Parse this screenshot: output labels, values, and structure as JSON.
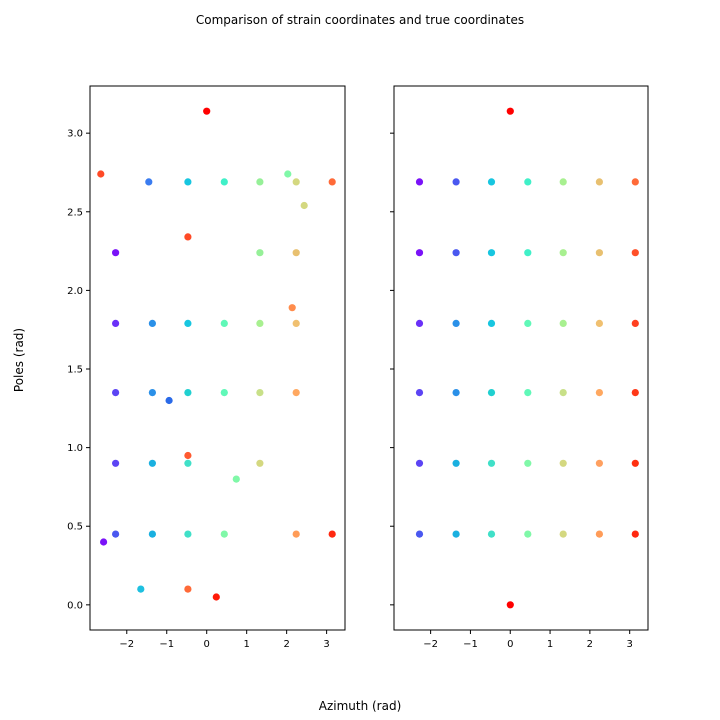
{
  "figure": {
    "title": "Comparison of strain coordinates and true coordinates",
    "xlabel": "Azimuth (rad)",
    "ylabel": "Poles (rad)"
  },
  "chart_data": [
    {
      "type": "scatter",
      "title": "",
      "xlabel": "",
      "ylabel": "",
      "xlim": [
        -2.92,
        3.46
      ],
      "ylim": [
        -0.16,
        3.3
      ],
      "xticks": [
        -2,
        -1,
        0,
        1,
        2,
        3
      ],
      "xtick_labels": [
        "−2",
        "−1",
        "0",
        "1",
        "2",
        "3"
      ],
      "yticks": [
        0.0,
        0.5,
        1.0,
        1.5,
        2.0,
        2.5,
        3.0
      ],
      "ytick_labels": [
        "0.0",
        "0.5",
        "1.0",
        "1.5",
        "2.0",
        "2.5",
        "3.0"
      ],
      "grid": false,
      "colormap": "rainbow",
      "points": [
        {
          "x": 0.0,
          "y": 3.14,
          "color": "#ff0000"
        },
        {
          "x": -2.65,
          "y": 2.74,
          "color": "#ff4a26"
        },
        {
          "x": -1.45,
          "y": 2.69,
          "color": "#3a7cf0"
        },
        {
          "x": -0.47,
          "y": 2.69,
          "color": "#17c6e0"
        },
        {
          "x": 0.44,
          "y": 2.69,
          "color": "#40f0c8"
        },
        {
          "x": 1.33,
          "y": 2.69,
          "color": "#96f098"
        },
        {
          "x": 2.03,
          "y": 2.74,
          "color": "#80f8a8"
        },
        {
          "x": 2.24,
          "y": 2.69,
          "color": "#d4d880"
        },
        {
          "x": 3.14,
          "y": 2.69,
          "color": "#ff6a38"
        },
        {
          "x": 2.44,
          "y": 2.54,
          "color": "#d4d880"
        },
        {
          "x": -2.28,
          "y": 2.24,
          "color": "#7a12f8"
        },
        {
          "x": -0.47,
          "y": 2.34,
          "color": "#ff4a26"
        },
        {
          "x": 1.33,
          "y": 2.24,
          "color": "#96f098"
        },
        {
          "x": 2.24,
          "y": 2.24,
          "color": "#e8c070"
        },
        {
          "x": 2.14,
          "y": 1.89,
          "color": "#ff8c4c"
        },
        {
          "x": -2.28,
          "y": 1.79,
          "color": "#6a30f8"
        },
        {
          "x": -1.36,
          "y": 1.79,
          "color": "#2a90e8"
        },
        {
          "x": -0.47,
          "y": 1.79,
          "color": "#17c6e0"
        },
        {
          "x": 0.44,
          "y": 1.79,
          "color": "#60f8b8"
        },
        {
          "x": 1.33,
          "y": 1.79,
          "color": "#a8f090"
        },
        {
          "x": 2.24,
          "y": 1.79,
          "color": "#f0c070"
        },
        {
          "x": -2.28,
          "y": 1.35,
          "color": "#5c44f4"
        },
        {
          "x": -1.36,
          "y": 1.35,
          "color": "#2a90e8"
        },
        {
          "x": -0.94,
          "y": 1.3,
          "color": "#2a6ae8"
        },
        {
          "x": -0.47,
          "y": 1.35,
          "color": "#20d0d0"
        },
        {
          "x": 0.44,
          "y": 1.35,
          "color": "#60f8b8"
        },
        {
          "x": 1.33,
          "y": 1.35,
          "color": "#c8e088"
        },
        {
          "x": 2.24,
          "y": 1.35,
          "color": "#ffa860"
        },
        {
          "x": -2.28,
          "y": 0.9,
          "color": "#5c44f4"
        },
        {
          "x": -1.36,
          "y": 0.9,
          "color": "#1ab0e0"
        },
        {
          "x": -0.47,
          "y": 0.95,
          "color": "#ff5a30"
        },
        {
          "x": -0.47,
          "y": 0.9,
          "color": "#40e0c8"
        },
        {
          "x": 0.74,
          "y": 0.8,
          "color": "#80f8a8"
        },
        {
          "x": 1.33,
          "y": 0.9,
          "color": "#d4d880"
        },
        {
          "x": -2.28,
          "y": 0.45,
          "color": "#4a58f0"
        },
        {
          "x": -1.36,
          "y": 0.45,
          "color": "#1ab0e0"
        },
        {
          "x": -0.47,
          "y": 0.45,
          "color": "#40e0c8"
        },
        {
          "x": 0.44,
          "y": 0.45,
          "color": "#80f8a8"
        },
        {
          "x": 2.24,
          "y": 0.45,
          "color": "#ff9c58"
        },
        {
          "x": 3.14,
          "y": 0.45,
          "color": "#ff2810"
        },
        {
          "x": -2.58,
          "y": 0.4,
          "color": "#7a12f8"
        },
        {
          "x": -1.65,
          "y": 0.1,
          "color": "#1ec0e0"
        },
        {
          "x": -0.47,
          "y": 0.1,
          "color": "#ff6a38"
        },
        {
          "x": 0.24,
          "y": 0.05,
          "color": "#ff1a08"
        }
      ]
    },
    {
      "type": "scatter",
      "title": "",
      "xlabel": "",
      "ylabel": "",
      "xlim": [
        -2.92,
        3.46
      ],
      "ylim": [
        -0.16,
        3.3
      ],
      "xticks": [
        -2,
        -1,
        0,
        1,
        2,
        3
      ],
      "xtick_labels": [
        "−2",
        "−1",
        "0",
        "1",
        "2",
        "3"
      ],
      "yticks": [
        0.0,
        0.5,
        1.0,
        1.5,
        2.0,
        2.5,
        3.0
      ],
      "ytick_labels": [
        "",
        "",
        "",
        "",
        "",
        "",
        ""
      ],
      "sharey": true,
      "grid": false,
      "colormap": "rainbow",
      "points": [
        {
          "x": 0.0,
          "y": 3.14,
          "color": "#ff0000"
        },
        {
          "x": -2.28,
          "y": 2.69,
          "color": "#7a12f8"
        },
        {
          "x": -1.36,
          "y": 2.69,
          "color": "#4a58f0"
        },
        {
          "x": -0.47,
          "y": 2.69,
          "color": "#17c6e0"
        },
        {
          "x": 0.44,
          "y": 2.69,
          "color": "#40f0c8"
        },
        {
          "x": 1.33,
          "y": 2.69,
          "color": "#a8f090"
        },
        {
          "x": 2.24,
          "y": 2.69,
          "color": "#e8c070"
        },
        {
          "x": 3.14,
          "y": 2.69,
          "color": "#ff6a38"
        },
        {
          "x": -2.28,
          "y": 2.24,
          "color": "#7a12f8"
        },
        {
          "x": -1.36,
          "y": 2.24,
          "color": "#4a58f0"
        },
        {
          "x": -0.47,
          "y": 2.24,
          "color": "#17c6e0"
        },
        {
          "x": 0.44,
          "y": 2.24,
          "color": "#40f0c8"
        },
        {
          "x": 1.33,
          "y": 2.24,
          "color": "#a8f090"
        },
        {
          "x": 2.24,
          "y": 2.24,
          "color": "#e8c070"
        },
        {
          "x": 3.14,
          "y": 2.24,
          "color": "#ff5028"
        },
        {
          "x": -2.28,
          "y": 1.79,
          "color": "#6a30f8"
        },
        {
          "x": -1.36,
          "y": 1.79,
          "color": "#2a90e8"
        },
        {
          "x": -0.47,
          "y": 1.79,
          "color": "#17c6e0"
        },
        {
          "x": 0.44,
          "y": 1.79,
          "color": "#60f8b8"
        },
        {
          "x": 1.33,
          "y": 1.79,
          "color": "#a8f090"
        },
        {
          "x": 2.24,
          "y": 1.79,
          "color": "#f0c070"
        },
        {
          "x": 3.14,
          "y": 1.79,
          "color": "#ff4020"
        },
        {
          "x": -2.28,
          "y": 1.35,
          "color": "#5c44f4"
        },
        {
          "x": -1.36,
          "y": 1.35,
          "color": "#2a90e8"
        },
        {
          "x": -0.47,
          "y": 1.35,
          "color": "#20d0d0"
        },
        {
          "x": 0.44,
          "y": 1.35,
          "color": "#60f8b8"
        },
        {
          "x": 1.33,
          "y": 1.35,
          "color": "#c8e088"
        },
        {
          "x": 2.24,
          "y": 1.35,
          "color": "#ffa860"
        },
        {
          "x": 3.14,
          "y": 1.35,
          "color": "#ff3818"
        },
        {
          "x": -2.28,
          "y": 0.9,
          "color": "#5c44f4"
        },
        {
          "x": -1.36,
          "y": 0.9,
          "color": "#1ab0e0"
        },
        {
          "x": -0.47,
          "y": 0.9,
          "color": "#40e0c8"
        },
        {
          "x": 0.44,
          "y": 0.9,
          "color": "#80f8a8"
        },
        {
          "x": 1.33,
          "y": 0.9,
          "color": "#d4d880"
        },
        {
          "x": 2.24,
          "y": 0.9,
          "color": "#ffa060"
        },
        {
          "x": 3.14,
          "y": 0.9,
          "color": "#ff3010"
        },
        {
          "x": -2.28,
          "y": 0.45,
          "color": "#4a58f0"
        },
        {
          "x": -1.36,
          "y": 0.45,
          "color": "#1ab0e0"
        },
        {
          "x": -0.47,
          "y": 0.45,
          "color": "#40e0c8"
        },
        {
          "x": 0.44,
          "y": 0.45,
          "color": "#80f8a8"
        },
        {
          "x": 1.33,
          "y": 0.45,
          "color": "#d4d880"
        },
        {
          "x": 2.24,
          "y": 0.45,
          "color": "#ff9c58"
        },
        {
          "x": 3.14,
          "y": 0.45,
          "color": "#ff2810"
        },
        {
          "x": 0.0,
          "y": 0.0,
          "color": "#ff0000"
        }
      ]
    }
  ]
}
